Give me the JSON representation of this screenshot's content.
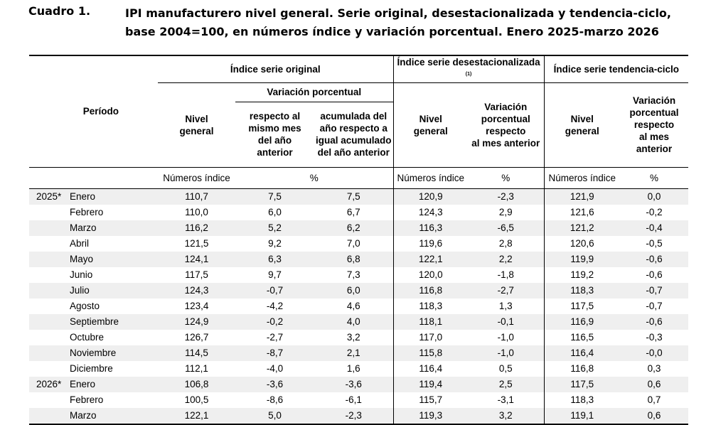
{
  "caption": {
    "label": "Cuadro 1.",
    "line1": "IPI manufacturero nivel general. Serie original, desestacionalizada y tendencia-ciclo,",
    "line2": "base 2004=100, en números índice y variación porcentual. Enero 2025-marzo 2026"
  },
  "header": {
    "periodo": "Período",
    "group_original": "Índice serie original",
    "group_desest": "Índice serie desestacionalizada",
    "group_desest_note": "(1)",
    "group_tendencia": "Índice serie tendencia-ciclo",
    "variacion_porcentual": "Variación porcentual",
    "nivel_general_1": "Nivel",
    "nivel_general_2": "general",
    "var_mismo_mes": [
      "respecto al",
      "mismo mes",
      "del año",
      "anterior"
    ],
    "var_acumulada": [
      "acumulada del",
      "año respecto a",
      "igual acumulado",
      "del año anterior"
    ],
    "var_desest": [
      "Variación",
      "porcentual",
      "respecto",
      "al mes anterior"
    ],
    "var_tendencia": [
      "Variación",
      "porcentual",
      "respecto",
      "al mes",
      "anterior"
    ]
  },
  "units": {
    "numeros_indice": "Números índice",
    "percent": "%"
  },
  "rows": [
    {
      "year": "2025*",
      "month": "Enero",
      "v": [
        "110,7",
        "7,5",
        "7,5",
        "120,9",
        "-2,3",
        "121,9",
        "0,0"
      ]
    },
    {
      "year": "",
      "month": "Febrero",
      "v": [
        "110,0",
        "6,0",
        "6,7",
        "124,3",
        "2,9",
        "121,6",
        "-0,2"
      ]
    },
    {
      "year": "",
      "month": "Marzo",
      "v": [
        "116,2",
        "5,2",
        "6,2",
        "116,3",
        "-6,5",
        "121,2",
        "-0,4"
      ]
    },
    {
      "year": "",
      "month": "Abril",
      "v": [
        "121,5",
        "9,2",
        "7,0",
        "119,6",
        "2,8",
        "120,6",
        "-0,5"
      ]
    },
    {
      "year": "",
      "month": "Mayo",
      "v": [
        "124,1",
        "6,3",
        "6,8",
        "122,1",
        "2,2",
        "119,9",
        "-0,6"
      ]
    },
    {
      "year": "",
      "month": "Junio",
      "v": [
        "117,5",
        "9,7",
        "7,3",
        "120,0",
        "-1,8",
        "119,2",
        "-0,6"
      ]
    },
    {
      "year": "",
      "month": "Julio",
      "v": [
        "124,3",
        "-0,7",
        "6,0",
        "116,8",
        "-2,7",
        "118,3",
        "-0,7"
      ]
    },
    {
      "year": "",
      "month": "Agosto",
      "v": [
        "123,4",
        "-4,2",
        "4,6",
        "118,3",
        "1,3",
        "117,5",
        "-0,7"
      ]
    },
    {
      "year": "",
      "month": "Septiembre",
      "v": [
        "124,9",
        "-0,2",
        "4,0",
        "118,1",
        "-0,1",
        "116,9",
        "-0,6"
      ]
    },
    {
      "year": "",
      "month": "Octubre",
      "v": [
        "126,7",
        "-2,7",
        "3,2",
        "117,0",
        "-1,0",
        "116,5",
        "-0,3"
      ]
    },
    {
      "year": "",
      "month": "Noviembre",
      "v": [
        "114,5",
        "-8,7",
        "2,1",
        "115,8",
        "-1,0",
        "116,4",
        "-0,0"
      ]
    },
    {
      "year": "",
      "month": "Diciembre",
      "v": [
        "112,1",
        "-4,0",
        "1,6",
        "116,4",
        "0,5",
        "116,8",
        "0,3"
      ]
    },
    {
      "year": "2026*",
      "month": "Enero",
      "v": [
        "106,8",
        "-3,6",
        "-3,6",
        "119,4",
        "2,5",
        "117,5",
        "0,6"
      ]
    },
    {
      "year": "",
      "month": "Febrero",
      "v": [
        "100,5",
        "-8,6",
        "-6,1",
        "115,7",
        "-3,1",
        "118,3",
        "0,7"
      ]
    },
    {
      "year": "",
      "month": "Marzo",
      "v": [
        "122,1",
        "5,0",
        "-2,3",
        "119,3",
        "3,2",
        "119,1",
        "0,6"
      ]
    }
  ]
}
